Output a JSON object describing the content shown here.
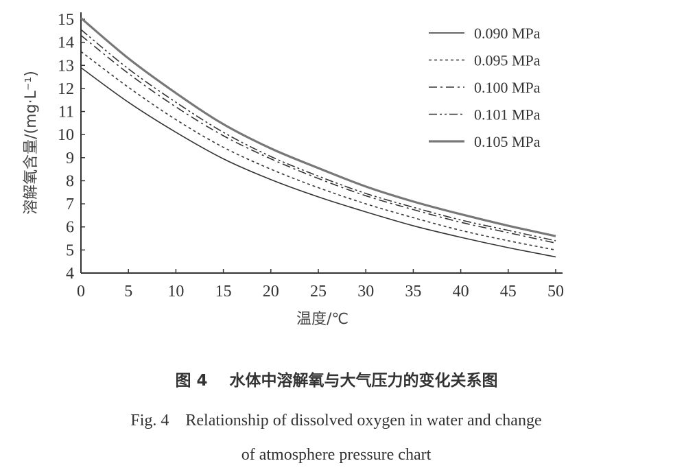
{
  "chart_data": {
    "type": "line",
    "title": "",
    "xlabel": "温度/℃",
    "ylabel": "溶解氧含量/(mg·L⁻¹)",
    "xlim": [
      0,
      50
    ],
    "ylim": [
      4,
      15
    ],
    "xticks": [
      0,
      5,
      10,
      15,
      20,
      25,
      30,
      35,
      40,
      45,
      50
    ],
    "yticks": [
      4,
      5,
      6,
      7,
      8,
      9,
      10,
      11,
      12,
      13,
      14,
      15
    ],
    "grid": false,
    "legend_position": "top-right",
    "x": [
      0,
      5,
      10,
      15,
      20,
      25,
      30,
      35,
      40,
      45,
      50
    ],
    "series": [
      {
        "name": "0.090 MPa",
        "style": "solid",
        "color": "#333333",
        "values": [
          12.9,
          11.4,
          10.1,
          8.95,
          8.05,
          7.3,
          6.65,
          6.05,
          5.55,
          5.1,
          4.7
        ]
      },
      {
        "name": "0.095 MPa",
        "style": "dotted",
        "color": "#333333",
        "values": [
          13.6,
          12.05,
          10.65,
          9.45,
          8.5,
          7.7,
          7.0,
          6.4,
          5.85,
          5.4,
          5.0
        ]
      },
      {
        "name": "0.100 MPa",
        "style": "dashdot",
        "color": "#333333",
        "values": [
          14.3,
          12.65,
          11.2,
          9.95,
          8.95,
          8.1,
          7.35,
          6.75,
          6.2,
          5.75,
          5.3
        ]
      },
      {
        "name": "0.101 MPa",
        "style": "dashdotdot",
        "color": "#333333",
        "values": [
          14.55,
          12.85,
          11.4,
          10.1,
          9.05,
          8.2,
          7.45,
          6.85,
          6.3,
          5.85,
          5.4
        ]
      },
      {
        "name": "0.105 MPa",
        "style": "thick",
        "color": "#777777",
        "values": [
          15.05,
          13.3,
          11.8,
          10.45,
          9.4,
          8.55,
          7.75,
          7.1,
          6.55,
          6.05,
          5.6
        ]
      }
    ]
  },
  "caption": {
    "cn": "图 4    水体中溶解氧与大气压力的变化关系图",
    "en": "Fig. 4    Relationship of dissolved oxygen in water and change\nof atmosphere pressure chart"
  }
}
